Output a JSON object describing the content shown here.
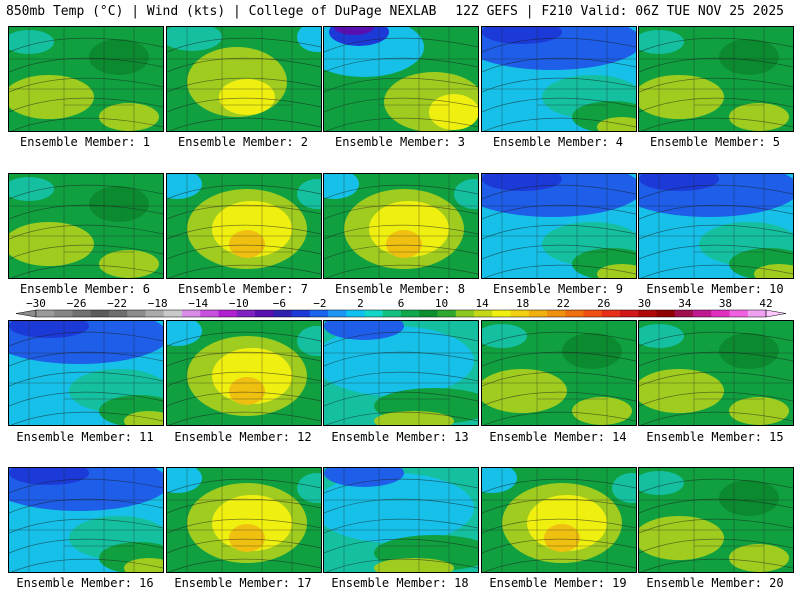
{
  "header": {
    "left": "850mb Temp (°C) | Wind (kts) | College of DuPage NEXLAB",
    "right": "12Z GEFS | F210 Valid: 06Z TUE NOV 25 2025"
  },
  "panels": [
    {
      "label": "Ensemble Member: 1",
      "scheme": "green"
    },
    {
      "label": "Ensemble Member: 2",
      "scheme": "greenyellow"
    },
    {
      "label": "Ensemble Member: 3",
      "scheme": "cold-nw"
    },
    {
      "label": "Ensemble Member: 4",
      "scheme": "blue"
    },
    {
      "label": "Ensemble Member: 5",
      "scheme": "green"
    },
    {
      "label": "Ensemble Member: 6",
      "scheme": "green"
    },
    {
      "label": "Ensemble Member: 7",
      "scheme": "warm"
    },
    {
      "label": "Ensemble Member: 8",
      "scheme": "warm"
    },
    {
      "label": "Ensemble Member: 9",
      "scheme": "blue"
    },
    {
      "label": "Ensemble Member: 10",
      "scheme": "blue"
    },
    {
      "label": "Ensemble Member: 11",
      "scheme": "blue"
    },
    {
      "label": "Ensemble Member: 12",
      "scheme": "warm"
    },
    {
      "label": "Ensemble Member: 13",
      "scheme": "cyan"
    },
    {
      "label": "Ensemble Member: 14",
      "scheme": "green"
    },
    {
      "label": "Ensemble Member: 15",
      "scheme": "green"
    },
    {
      "label": "Ensemble Member: 16",
      "scheme": "blue"
    },
    {
      "label": "Ensemble Member: 17",
      "scheme": "warm"
    },
    {
      "label": "Ensemble Member: 18",
      "scheme": "cyan"
    },
    {
      "label": "Ensemble Member: 19",
      "scheme": "warm"
    },
    {
      "label": "Ensemble Member: 20",
      "scheme": "green"
    }
  ],
  "colorbar": {
    "labels": [
      "−30",
      "−26",
      "−22",
      "−18",
      "−14",
      "−10",
      "−6",
      "−2",
      "2",
      "6",
      "10",
      "14",
      "18",
      "22",
      "26",
      "30",
      "34",
      "38",
      "42"
    ],
    "colors": [
      "#9a9a9a",
      "#858585",
      "#707070",
      "#5c5c5c",
      "#6e6e6e",
      "#8c8c8c",
      "#aaaaaa",
      "#c8c8c8",
      "#d88ce8",
      "#c850e0",
      "#b020d0",
      "#8020c0",
      "#5a10b0",
      "#3020b0",
      "#1c3ad8",
      "#1a64f0",
      "#1c96f5",
      "#10c0f0",
      "#12d6c8",
      "#14c080",
      "#10a84c",
      "#0c8f30",
      "#2ea82e",
      "#8cc81e",
      "#c4d818",
      "#f0f010",
      "#f0d010",
      "#f0b010",
      "#f09010",
      "#f07010",
      "#f05010",
      "#e83018",
      "#d01818",
      "#b00808",
      "#900000",
      "#a01050",
      "#c01890",
      "#e030c0",
      "#f060e0",
      "#f0a0f0"
    ],
    "min_color": "#8c8c8c",
    "max_color": "#ffc8ff"
  },
  "colors": {
    "blue": "#1e5ee8",
    "cyan": "#16c0e8",
    "teal": "#14c0a0",
    "green": "#10a040",
    "darkgreen": "#0c8a30",
    "yellowgreen": "#a0cc20",
    "yellow": "#f0f010",
    "orange": "#f0c010",
    "darkblue": "#1c3ad8",
    "purple": "#5a10b0"
  }
}
